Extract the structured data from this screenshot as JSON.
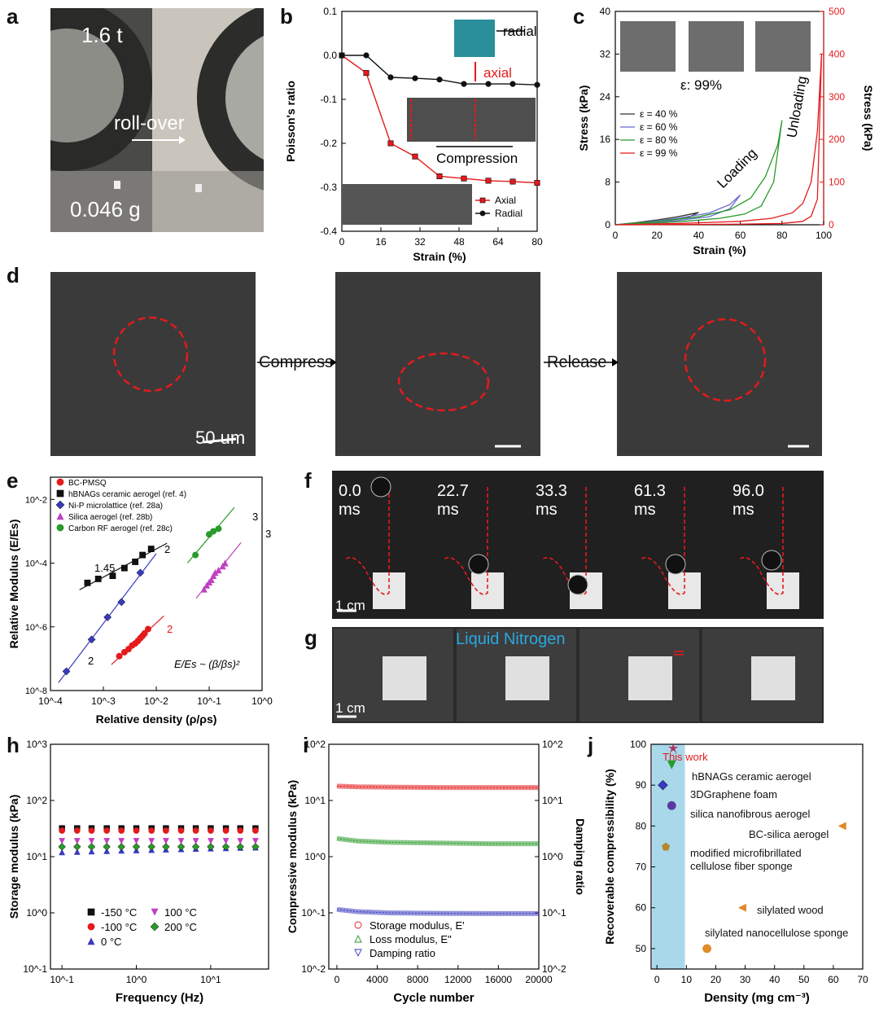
{
  "panel_labels": {
    "a": "a",
    "b": "b",
    "c": "c",
    "d": "d",
    "e": "e",
    "f": "f",
    "g": "g",
    "h": "h",
    "i": "i",
    "j": "j"
  },
  "panel_a": {
    "weight": "1.6 t",
    "action": "roll-over",
    "mass": "0.046 g"
  },
  "panel_d": {
    "compress": "Compress",
    "release": "Release",
    "scale": "50 um"
  },
  "panel_f": {
    "times": [
      "0.0\nms",
      "22.7\nms",
      "33.3\nms",
      "61.3\nms",
      "96.0\nms"
    ],
    "scale": "1 cm"
  },
  "panel_g": {
    "title": "Liquid Nitrogen",
    "scale": "1 cm"
  },
  "colors": {
    "red": "#e41a1c",
    "black": "#111111",
    "blue": "#3a3ac0",
    "green": "#2a9a2a",
    "magenta": "#c040c0",
    "teal": "#2a8f9a",
    "jblue": "#a9d8ea",
    "orange": "#e08a2a"
  },
  "chart_data": [
    {
      "id": "b",
      "type": "line",
      "xlabel": "Strain (%)",
      "ylabel": "Poisson's ratio",
      "xlim": [
        0,
        80
      ],
      "ylim": [
        -0.4,
        0.1
      ],
      "xticks": [
        0,
        16,
        32,
        48,
        64,
        80
      ],
      "yticks": [
        0.1,
        0.0,
        -0.1,
        -0.2,
        -0.3,
        -0.4
      ],
      "series": [
        {
          "name": "Axial",
          "x": [
            0,
            10,
            20,
            30,
            40,
            50,
            60,
            70,
            80
          ],
          "y": [
            0,
            -0.04,
            -0.2,
            -0.23,
            -0.275,
            -0.28,
            -0.285,
            -0.287,
            -0.29
          ]
        },
        {
          "name": "Radial",
          "x": [
            0,
            10,
            20,
            30,
            40,
            50,
            60,
            70,
            80
          ],
          "y": [
            0,
            0,
            -0.05,
            -0.052,
            -0.055,
            -0.065,
            -0.065,
            -0.065,
            -0.067
          ]
        }
      ],
      "annotations": [
        "radial",
        "axial",
        "Compression"
      ]
    },
    {
      "id": "c",
      "type": "line",
      "xlabel": "Strain (%)",
      "ylabel": "Stress (kPa)",
      "ylabel_right": "Stress (kPa)",
      "xlim": [
        0,
        100
      ],
      "ylim": [
        0,
        40
      ],
      "ylim_right": [
        0,
        500
      ],
      "xticks": [
        0,
        20,
        40,
        60,
        80,
        100
      ],
      "yticks": [
        0,
        8,
        16,
        24,
        32,
        40
      ],
      "yticks_right": [
        0,
        100,
        200,
        300,
        400,
        500
      ],
      "series": [
        {
          "name": "ε = 40 %",
          "x": [
            0,
            10,
            20,
            30,
            40,
            35,
            25,
            15,
            5,
            0
          ],
          "y": [
            0,
            0.4,
            0.9,
            1.5,
            2.3,
            1.4,
            0.7,
            0.3,
            0.1,
            0
          ]
        },
        {
          "name": "ε = 60 %",
          "x": [
            0,
            15,
            30,
            45,
            55,
            60,
            55,
            45,
            30,
            15,
            0
          ],
          "y": [
            0,
            0.5,
            1.2,
            2.2,
            3.8,
            5.6,
            3.0,
            1.5,
            0.8,
            0.3,
            0
          ]
        },
        {
          "name": "ε = 80 %",
          "x": [
            0,
            20,
            40,
            55,
            65,
            72,
            78,
            80,
            76,
            70,
            62,
            50,
            35,
            20,
            0
          ],
          "y": [
            0,
            0.6,
            1.5,
            2.8,
            5,
            9,
            15,
            19.6,
            8,
            3.5,
            2,
            1.2,
            0.7,
            0.3,
            0
          ]
        },
        {
          "name": "ε = 99 %",
          "axis": "right",
          "x": [
            0,
            30,
            60,
            75,
            85,
            90,
            94,
            97,
            99,
            97,
            94,
            90,
            80,
            60,
            30,
            0
          ],
          "y": [
            0,
            3,
            8,
            15,
            28,
            50,
            100,
            220,
            400,
            60,
            20,
            8,
            3,
            1.5,
            0.5,
            0
          ]
        }
      ],
      "annotations": [
        "ε: 99%",
        "Loading",
        "Unloading"
      ]
    },
    {
      "id": "e",
      "type": "scatter",
      "xlabel": "Relative density (ρ/ρs)",
      "ylabel": "Relative Modulus (E/Es)",
      "xscale": "log",
      "yscale": "log",
      "xlim": [
        0.0001,
        1
      ],
      "ylim": [
        1e-08,
        0.05
      ],
      "xticks": [
        "10^-4",
        "10^-3",
        "10^-2",
        "10^-1",
        "10^0"
      ],
      "yticks": [
        "10^-8",
        "10^-6",
        "10^-4",
        "10^-2"
      ],
      "series": [
        {
          "name": "BC-PMSQ",
          "x": [
            0.002,
            0.0025,
            0.003,
            0.0035,
            0.004,
            0.0045,
            0.005,
            0.0055,
            0.006,
            0.007
          ],
          "y": [
            1.2e-07,
            1.6e-07,
            2e-07,
            2.6e-07,
            3e-07,
            3.6e-07,
            4.4e-07,
            5.2e-07,
            6.2e-07,
            8.5e-07
          ]
        },
        {
          "name": "hBNAGs ceramic aerogel (ref. 4)",
          "x": [
            0.0005,
            0.0008,
            0.0015,
            0.0025,
            0.004,
            0.0055,
            0.008
          ],
          "y": [
            2.4e-05,
            3.2e-05,
            4e-05,
            7e-05,
            0.00011,
            0.00018,
            0.00028
          ]
        },
        {
          "name": "Ni-P microlattice (ref. 28a)",
          "x": [
            0.0002,
            0.0006,
            0.0012,
            0.0022,
            0.005
          ],
          "y": [
            4e-08,
            4e-07,
            2e-06,
            6e-06,
            5e-05
          ]
        },
        {
          "name": "Silica aerogel (ref. 28b)",
          "x": [
            0.08,
            0.09,
            0.1,
            0.11,
            0.12,
            0.13,
            0.15,
            0.18,
            0.2
          ],
          "y": [
            1.5e-05,
            2e-05,
            2.5e-05,
            3e-05,
            4e-05,
            5e-05,
            6e-05,
            8e-05,
            0.0001
          ]
        },
        {
          "name": "Carbon RF aerogel (ref. 28c)",
          "x": [
            0.055,
            0.1,
            0.12,
            0.15
          ],
          "y": [
            0.00018,
            0.0008,
            0.001,
            0.0012
          ]
        }
      ],
      "annotations": [
        "2",
        "1.45",
        "2",
        "3",
        "3",
        "2",
        "E/Es ~ (β/βs)²"
      ]
    },
    {
      "id": "h",
      "type": "scatter",
      "xlabel": "Frequency (Hz)",
      "ylabel": "Storage modulus (kPa)",
      "xscale": "log",
      "yscale": "log",
      "xlim": [
        0.1,
        50
      ],
      "ylim": [
        0.1,
        1000
      ],
      "xticks": [
        "10^-1",
        "10^0",
        "10^1"
      ],
      "yticks": [
        "10^-1",
        "10^0",
        "10^1",
        "10^2",
        "10^3"
      ],
      "x": [
        0.1,
        0.16,
        0.25,
        0.4,
        0.63,
        1,
        1.6,
        2.5,
        4,
        6.3,
        10,
        16,
        25,
        40
      ],
      "series": [
        {
          "name": "-150 °C",
          "values": [
            32,
            32,
            32,
            32,
            32,
            32,
            32,
            32,
            32,
            32,
            32,
            32,
            32,
            32
          ]
        },
        {
          "name": "-100 °C",
          "values": [
            29,
            29,
            29,
            29,
            29,
            29,
            29,
            29,
            29,
            29,
            29,
            29,
            29,
            29
          ]
        },
        {
          "name": "0 °C",
          "values": [
            12,
            12.2,
            12.4,
            12.6,
            12.8,
            13,
            13.2,
            13.4,
            13.6,
            13.8,
            14,
            14.2,
            14.4,
            14.6
          ]
        },
        {
          "name": "100 °C",
          "values": [
            19,
            19,
            19,
            19,
            19,
            19,
            19,
            19,
            19,
            19,
            19,
            19,
            19,
            19
          ]
        },
        {
          "name": "200 °C",
          "values": [
            15,
            15,
            15,
            15,
            15,
            15,
            15,
            15,
            15,
            15,
            15,
            15,
            15,
            15
          ]
        }
      ]
    },
    {
      "id": "i",
      "type": "line",
      "xlabel": "Cycle number",
      "ylabel": "Compressive modulus (kPa)",
      "ylabel_right": "Damping ratio",
      "yscale": "log",
      "xlim": [
        0,
        20000
      ],
      "ylim": [
        0.01,
        100
      ],
      "xticks": [
        0,
        4000,
        8000,
        12000,
        16000,
        20000
      ],
      "yticks": [
        "10^-2",
        "10^-1",
        "10^0",
        "10^1",
        "10^2"
      ],
      "series": [
        {
          "name": "Storage modulus, E'",
          "x": [
            0,
            2000,
            5000,
            10000,
            15000,
            20000
          ],
          "y": [
            18,
            17.5,
            17.3,
            17,
            17,
            17
          ]
        },
        {
          "name": "Loss modulus, E\"",
          "x": [
            0,
            2000,
            5000,
            10000,
            15000,
            20000
          ],
          "y": [
            2.1,
            1.9,
            1.8,
            1.75,
            1.7,
            1.7
          ]
        },
        {
          "name": "Damping ratio",
          "x": [
            0,
            2000,
            5000,
            10000,
            15000,
            20000
          ],
          "y": [
            0.115,
            0.105,
            0.1,
            0.098,
            0.097,
            0.097
          ]
        }
      ]
    },
    {
      "id": "j",
      "type": "scatter",
      "xlabel": "Density (mg cm⁻³)",
      "ylabel": "Recoverable compressibility (%)",
      "xlim": [
        0,
        70
      ],
      "ylim": [
        45,
        100
      ],
      "xticks": [
        0,
        10,
        20,
        30,
        40,
        50,
        60,
        70
      ],
      "yticks": [
        50,
        60,
        70,
        80,
        90,
        100
      ],
      "series": [
        {
          "name": "This work",
          "x": [
            5.5
          ],
          "y": [
            99
          ]
        },
        {
          "name": "hBNAGs ceramic aerogel",
          "x": [
            5
          ],
          "y": [
            95
          ]
        },
        {
          "name": "3DGraphene foam",
          "x": [
            2
          ],
          "y": [
            90
          ]
        },
        {
          "name": "silica nanofibrous aerogel",
          "x": [
            5
          ],
          "y": [
            85
          ]
        },
        {
          "name": "BC-silica aerogel",
          "x": [
            63
          ],
          "y": [
            80
          ]
        },
        {
          "name": "modified microfibrillated cellulose fiber sponge",
          "x": [
            3
          ],
          "y": [
            75
          ]
        },
        {
          "name": "silylated wood",
          "x": [
            29
          ],
          "y": [
            60
          ]
        },
        {
          "name": "silylated nanocellulose sponge",
          "x": [
            17
          ],
          "y": [
            50
          ]
        }
      ]
    }
  ],
  "legend_e": [
    "BC-PMSQ",
    "hBNAGs ceramic aerogel (ref. 4)",
    "Ni-P microlattice (ref. 28a)",
    "Silica aerogel (ref. 28b)",
    "Carbon RF aerogel (ref. 28c)"
  ],
  "legend_j_labels": [
    "This work",
    "hBNAGs ceramic aerogel",
    "3DGraphene foam",
    "silica nanofibrous aerogel",
    "BC-silica aerogel",
    "modified microfibrillated\ncellulose fiber sponge",
    "silylated wood",
    "silylated nanocellulose sponge"
  ]
}
